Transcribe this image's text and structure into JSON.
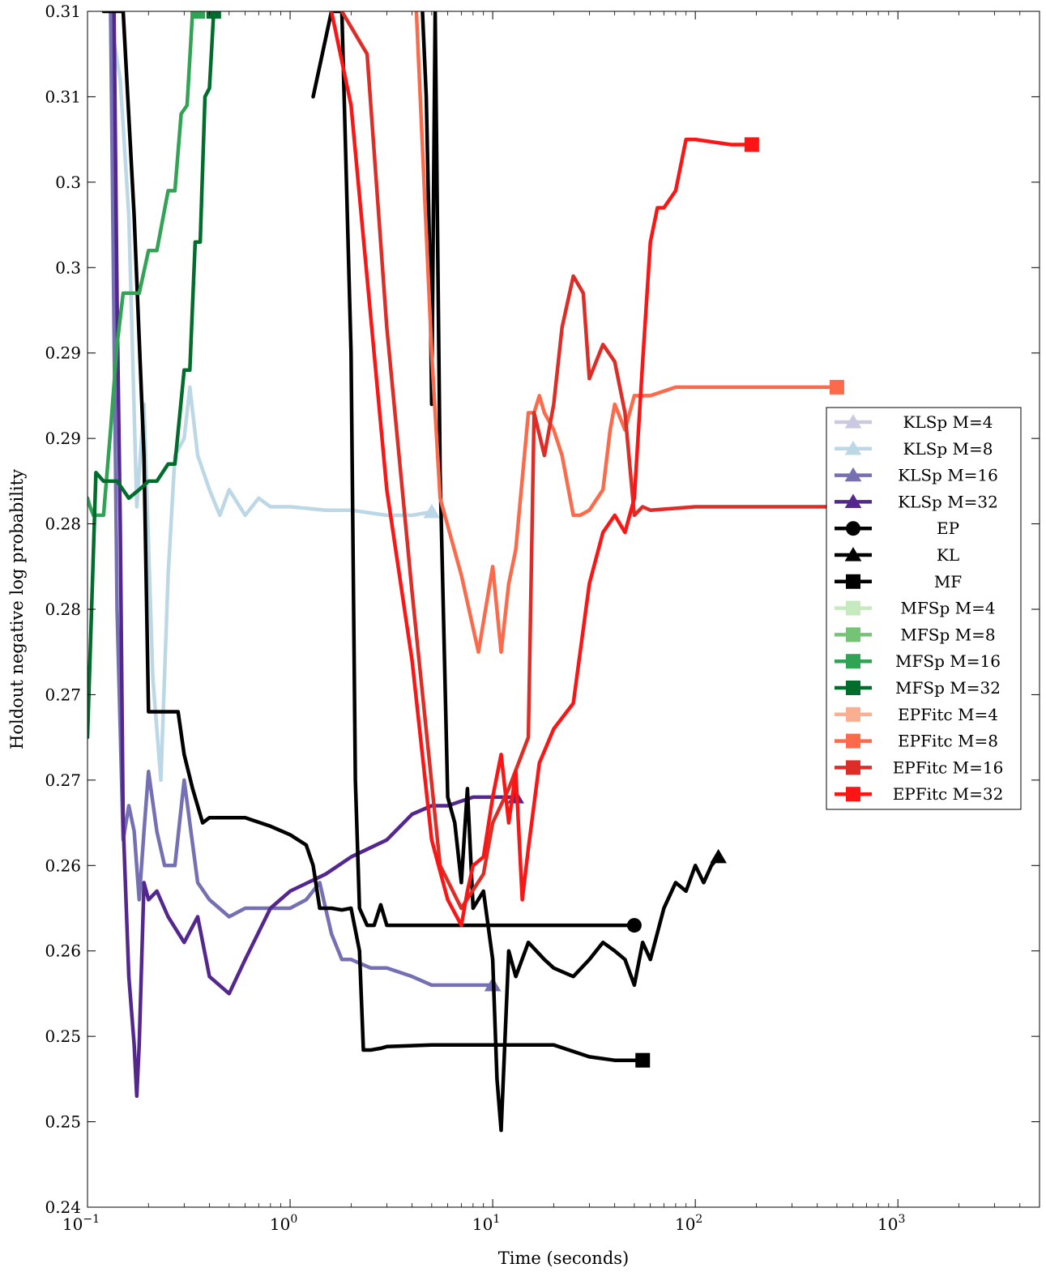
{
  "chart_data": {
    "type": "line",
    "title": "",
    "xlabel": "Time (seconds)",
    "ylabel": "Holdout negative log probability",
    "x_scale": "log",
    "xlim": [
      0.1,
      5000
    ],
    "ylim": [
      0.24,
      0.31
    ],
    "grid": false,
    "legend_position": "right",
    "x_ticks": [
      {
        "value": 0.1,
        "base": "10",
        "exp": "−1"
      },
      {
        "value": 1,
        "base": "10",
        "exp": "0"
      },
      {
        "value": 10,
        "base": "10",
        "exp": "1"
      },
      {
        "value": 100,
        "base": "10",
        "exp": "2"
      },
      {
        "value": 1000,
        "base": "10",
        "exp": "3"
      }
    ],
    "y_ticks": [
      {
        "value": 0.24,
        "label": "0.24"
      },
      {
        "value": 0.245,
        "label": "0.25"
      },
      {
        "value": 0.25,
        "label": "0.25"
      },
      {
        "value": 0.255,
        "label": "0.26"
      },
      {
        "value": 0.26,
        "label": "0.26"
      },
      {
        "value": 0.265,
        "label": "0.27"
      },
      {
        "value": 0.27,
        "label": "0.27"
      },
      {
        "value": 0.275,
        "label": "0.28"
      },
      {
        "value": 0.28,
        "label": "0.28"
      },
      {
        "value": 0.285,
        "label": "0.29"
      },
      {
        "value": 0.29,
        "label": "0.29"
      },
      {
        "value": 0.295,
        "label": "0.3"
      },
      {
        "value": 0.3,
        "label": "0.3"
      },
      {
        "value": 0.305,
        "label": "0.31"
      },
      {
        "value": 0.31,
        "label": "0.31"
      }
    ],
    "series": [
      {
        "name": "KLSp M=4",
        "color": "#cbc9e2",
        "marker": "triangle",
        "x": [],
        "y": []
      },
      {
        "name": "KLSp M=8",
        "color": "#bcd7e6",
        "marker": "triangle",
        "x": [
          0.13,
          0.145,
          0.16,
          0.175,
          0.19,
          0.21,
          0.23,
          0.25,
          0.27,
          0.3,
          0.32,
          0.35,
          0.4,
          0.45,
          0.5,
          0.6,
          0.7,
          0.8,
          1.0,
          1.5,
          2.0,
          3.0,
          4.0,
          5.0
        ],
        "y": [
          0.3095,
          0.306,
          0.298,
          0.281,
          0.287,
          0.271,
          0.265,
          0.277,
          0.284,
          0.285,
          0.288,
          0.284,
          0.282,
          0.2805,
          0.282,
          0.2805,
          0.2815,
          0.281,
          0.281,
          0.2808,
          0.2808,
          0.2805,
          0.2805,
          0.2807
        ]
      },
      {
        "name": "KLSp M=16",
        "color": "#7570b3",
        "marker": "triangle",
        "x": [
          0.13,
          0.14,
          0.15,
          0.16,
          0.17,
          0.18,
          0.19,
          0.2,
          0.22,
          0.24,
          0.27,
          0.3,
          0.35,
          0.4,
          0.5,
          0.6,
          0.8,
          1.0,
          1.2,
          1.4,
          1.6,
          1.8,
          2.0,
          2.5,
          3.0,
          4.0,
          5.0,
          6.0,
          7.0,
          8.0,
          10.0
        ],
        "y": [
          0.31,
          0.275,
          0.2615,
          0.2635,
          0.262,
          0.258,
          0.262,
          0.2655,
          0.262,
          0.26,
          0.26,
          0.265,
          0.259,
          0.258,
          0.257,
          0.2575,
          0.2575,
          0.2575,
          0.258,
          0.259,
          0.256,
          0.2545,
          0.2545,
          0.254,
          0.254,
          0.2535,
          0.253,
          0.253,
          0.253,
          0.253,
          0.253
        ]
      },
      {
        "name": "KLSp M=32",
        "color": "#54278f",
        "marker": "triangle",
        "x": [
          0.135,
          0.14,
          0.145,
          0.15,
          0.16,
          0.17,
          0.175,
          0.18,
          0.19,
          0.2,
          0.22,
          0.25,
          0.3,
          0.35,
          0.4,
          0.5,
          0.6,
          0.8,
          1.0,
          1.5,
          2.0,
          3.0,
          4.0,
          5.0,
          6.0,
          8.0,
          10.0,
          13.0
        ],
        "y": [
          0.3105,
          0.293,
          0.28,
          0.2625,
          0.2535,
          0.2495,
          0.2465,
          0.2495,
          0.259,
          0.258,
          0.2585,
          0.257,
          0.2555,
          0.257,
          0.2535,
          0.2525,
          0.2545,
          0.2575,
          0.2585,
          0.2595,
          0.2605,
          0.2615,
          0.263,
          0.2635,
          0.2635,
          0.264,
          0.264,
          0.264
        ]
      },
      {
        "name": "EP",
        "color": "#000000",
        "marker": "circle",
        "x": [
          1.3,
          1.6,
          1.8,
          2.0,
          2.1,
          2.2,
          2.4,
          2.6,
          2.8,
          3.0,
          5.0,
          10.0,
          20.0,
          50.0
        ],
        "y": [
          0.305,
          0.31,
          0.31,
          0.29,
          0.265,
          0.2575,
          0.2565,
          0.2565,
          0.2577,
          0.2565,
          0.2565,
          0.2565,
          0.2565,
          0.2565
        ]
      },
      {
        "name": "KL",
        "color": "#000000",
        "marker": "triangle",
        "x": [
          4.5,
          4.7,
          4.9,
          5.0,
          5.2,
          5.5,
          6.0,
          6.5,
          7.0,
          7.5,
          8.0,
          9.0,
          10.0,
          10.5,
          11.0,
          12.0,
          13.0,
          15.0,
          18.0,
          20.0,
          25.0,
          30.0,
          35.0,
          40.0,
          45.0,
          50.0,
          55.0,
          60.0,
          70.0,
          80.0,
          90.0,
          100.0,
          110.0,
          120.0,
          130.0
        ],
        "y": [
          0.31,
          0.305,
          0.295,
          0.287,
          0.31,
          0.283,
          0.264,
          0.2625,
          0.259,
          0.2645,
          0.2575,
          0.2585,
          0.2545,
          0.2475,
          0.2445,
          0.255,
          0.2535,
          0.2555,
          0.2545,
          0.254,
          0.2535,
          0.2545,
          0.2555,
          0.255,
          0.2545,
          0.253,
          0.2555,
          0.2545,
          0.2575,
          0.259,
          0.2585,
          0.26,
          0.259,
          0.26,
          0.2605
        ]
      },
      {
        "name": "MF",
        "color": "#000000",
        "marker": "square",
        "x": [
          0.12,
          0.15,
          0.17,
          0.19,
          0.2,
          0.22,
          0.25,
          0.28,
          0.3,
          0.33,
          0.37,
          0.4,
          0.5,
          0.6,
          0.8,
          1.0,
          1.2,
          1.3,
          1.4,
          1.6,
          1.8,
          2.0,
          2.2,
          2.3,
          2.5,
          2.8,
          3.0,
          5.0,
          10.0,
          20.0,
          30.0,
          40.0,
          55.0
        ],
        "y": [
          0.31,
          0.31,
          0.298,
          0.284,
          0.269,
          0.269,
          0.269,
          0.269,
          0.2665,
          0.2645,
          0.2625,
          0.2628,
          0.2628,
          0.2628,
          0.2623,
          0.2618,
          0.2612,
          0.26,
          0.2575,
          0.2575,
          0.2574,
          0.2575,
          0.255,
          0.2492,
          0.2492,
          0.2493,
          0.2494,
          0.2495,
          0.2495,
          0.2495,
          0.2488,
          0.2486,
          0.2486
        ]
      },
      {
        "name": "MFSp M=4",
        "color": "#c7e9c0",
        "marker": "square",
        "x": [],
        "y": []
      },
      {
        "name": "MFSp M=8",
        "color": "#74c476",
        "marker": "square",
        "x": [],
        "y": []
      },
      {
        "name": "MFSp M=16",
        "color": "#31a354",
        "marker": "square",
        "x": [
          0.1,
          0.103,
          0.107,
          0.115,
          0.12,
          0.13,
          0.14,
          0.15,
          0.16,
          0.18,
          0.2,
          0.22,
          0.25,
          0.27,
          0.29,
          0.31,
          0.33,
          0.35
        ],
        "y": [
          0.2815,
          0.281,
          0.2805,
          0.2805,
          0.2805,
          0.2855,
          0.2905,
          0.2935,
          0.2935,
          0.2935,
          0.296,
          0.296,
          0.2995,
          0.2995,
          0.304,
          0.3045,
          0.31,
          0.31
        ]
      },
      {
        "name": "MFSp M=32",
        "color": "#006d2c",
        "marker": "square",
        "x": [
          0.1,
          0.11,
          0.12,
          0.14,
          0.16,
          0.18,
          0.2,
          0.22,
          0.25,
          0.27,
          0.3,
          0.32,
          0.34,
          0.36,
          0.38,
          0.4,
          0.42
        ],
        "y": [
          0.2675,
          0.283,
          0.2825,
          0.2825,
          0.2815,
          0.282,
          0.2825,
          0.2825,
          0.2835,
          0.2835,
          0.289,
          0.289,
          0.2965,
          0.2965,
          0.305,
          0.3055,
          0.31
        ]
      },
      {
        "name": "EPFitc M=4",
        "color": "#fcae91",
        "marker": "square",
        "x": [],
        "y": []
      },
      {
        "name": "EPFitc M=8",
        "color": "#fb6a4a",
        "marker": "square",
        "x": [
          4.2,
          5.0,
          5.5,
          7.0,
          8.5,
          10.0,
          11.0,
          12.0,
          13.0,
          15.0,
          16.0,
          17.0,
          18.0,
          20.0,
          22.0,
          25.0,
          27.0,
          30.0,
          35.0,
          38.0,
          40.0,
          45.0,
          50.0,
          60.0,
          80.0,
          100.0,
          200.0,
          500.0
        ],
        "y": [
          0.31,
          0.29,
          0.2815,
          0.277,
          0.2725,
          0.2775,
          0.2725,
          0.2765,
          0.2785,
          0.2865,
          0.2865,
          0.2875,
          0.2865,
          0.2855,
          0.284,
          0.2805,
          0.2805,
          0.2808,
          0.282,
          0.2855,
          0.287,
          0.2855,
          0.2875,
          0.2875,
          0.288,
          0.288,
          0.288,
          0.288
        ]
      },
      {
        "name": "EPFitc M=16",
        "color": "#de2d26",
        "marker": "square",
        "x": [
          1.8,
          2.4,
          3.0,
          4.0,
          5.5,
          7.0,
          9.0,
          10.0,
          12.0,
          15.0,
          16.0,
          18.0,
          20.0,
          22.0,
          25.0,
          28.0,
          30.0,
          35.0,
          40.0,
          45.0,
          50.0,
          55.0,
          60.0,
          100.0,
          200.0,
          500.0
        ],
        "y": [
          0.31,
          0.3075,
          0.2915,
          0.276,
          0.26,
          0.2575,
          0.2595,
          0.2625,
          0.2645,
          0.2675,
          0.2865,
          0.284,
          0.287,
          0.2915,
          0.2945,
          0.2935,
          0.2885,
          0.2905,
          0.2895,
          0.2865,
          0.2805,
          0.281,
          0.2808,
          0.281,
          0.281,
          0.281
        ]
      },
      {
        "name": "EPFitc M=32",
        "color": "#fb1515",
        "marker": "square",
        "x": [
          1.6,
          2.0,
          3.0,
          4.0,
          5.0,
          6.0,
          7.0,
          7.5,
          8.0,
          9.0,
          10.0,
          11.0,
          12.0,
          13.0,
          14.0,
          15.0,
          17.0,
          20.0,
          25.0,
          30.0,
          35.0,
          40.0,
          45.0,
          50.0,
          55.0,
          60.0,
          65.0,
          70.0,
          80.0,
          90.0,
          100.0,
          150.0,
          190.0
        ],
        "y": [
          0.31,
          0.3045,
          0.282,
          0.272,
          0.2615,
          0.258,
          0.2565,
          0.2585,
          0.26,
          0.2605,
          0.264,
          0.2665,
          0.2625,
          0.2655,
          0.258,
          0.261,
          0.266,
          0.268,
          0.2695,
          0.2765,
          0.2795,
          0.2805,
          0.2795,
          0.2815,
          0.2895,
          0.2965,
          0.2985,
          0.2985,
          0.2995,
          0.3025,
          0.3025,
          0.3022,
          0.3022
        ]
      }
    ]
  }
}
